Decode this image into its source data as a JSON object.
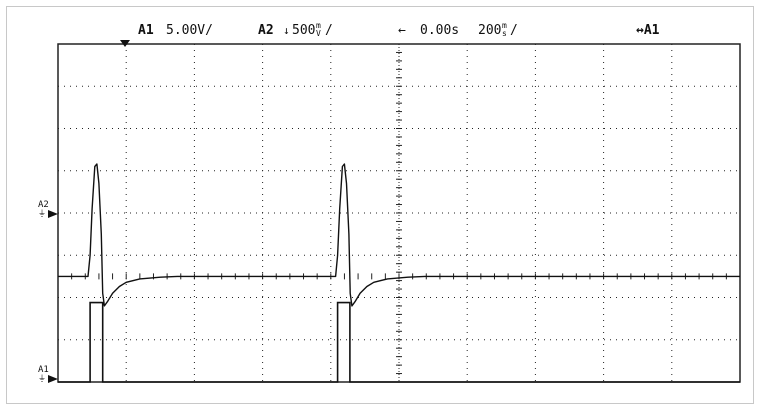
{
  "header": {
    "ch_a1_name": "A1",
    "ch_a1_scale": "5.00V/",
    "ch_a2_name": "A2",
    "ch_a2_prefix": "↓",
    "ch_a2_value": "500",
    "ch_a2_unit_top": "m",
    "ch_a2_unit_bottom": "V",
    "ch_a2_suffix": "/",
    "timebase_arrow": "←",
    "timebase_position": "0.00s",
    "timebase_value": "200",
    "timebase_unit_top": "m",
    "timebase_unit_bottom": "s",
    "timebase_suffix": "/",
    "trigger_source": "↔A1"
  },
  "markers": {
    "a2_label": "A2",
    "a1_label": "A1"
  },
  "colors": {
    "trace": "#111111",
    "grid": "#222222",
    "background": "#ffffff"
  },
  "chart_data": {
    "type": "line",
    "title": "",
    "xlabel": "",
    "ylabel": "",
    "grid": true,
    "divisions": {
      "x": 10,
      "y": 8
    },
    "timebase_s_per_div": 0.2,
    "xlim": [
      0,
      2.0
    ],
    "series": [
      {
        "name": "A1",
        "units": "V",
        "volts_per_div": 5.0,
        "ground_div": 0,
        "x": [
          0.0,
          0.094,
          0.094,
          0.131,
          0.131,
          0.82,
          0.82,
          0.856,
          0.856,
          2.0
        ],
        "y": [
          0,
          0,
          9.4,
          9.4,
          0,
          0,
          9.4,
          9.4,
          0,
          0
        ]
      },
      {
        "name": "A2",
        "units": "V",
        "volts_per_div": 0.5,
        "ground_div": 2.5,
        "x": [
          0.0,
          0.088,
          0.094,
          0.1,
          0.108,
          0.114,
          0.12,
          0.127,
          0.131,
          0.136,
          0.145,
          0.16,
          0.18,
          0.2,
          0.24,
          0.3,
          0.35,
          0.4,
          0.5,
          1.0,
          1.5,
          0.0
        ],
        "y": [
          0,
          0,
          0.25,
          0.8,
          1.3,
          1.33,
          1.1,
          0.5,
          -0.2,
          -0.35,
          -0.3,
          -0.2,
          -0.12,
          -0.07,
          -0.03,
          -0.01,
          0,
          0,
          0,
          0,
          0,
          0
        ]
      }
    ],
    "repeat_period_s": 0.726
  }
}
